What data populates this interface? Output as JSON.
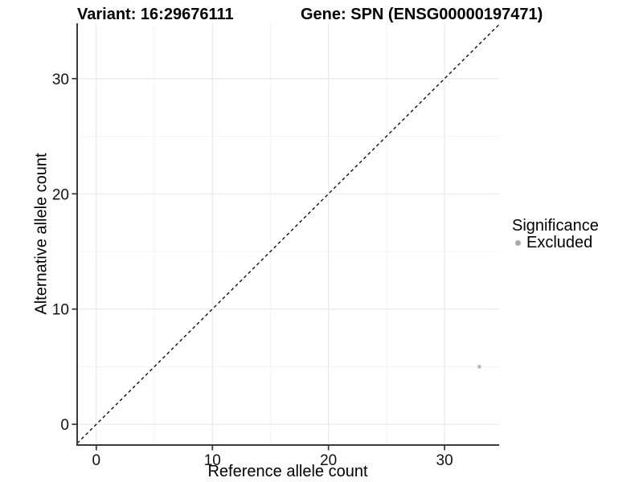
{
  "titles": {
    "variant": "Variant: 16:29676111",
    "gene": "Gene: SPN (ENSG00000197471)"
  },
  "chart_data": {
    "type": "scatter",
    "xlabel": "Reference allele count",
    "ylabel": "Alternative allele count",
    "xlim": [
      -1.65,
      34.7
    ],
    "ylim": [
      -1.8,
      34.8
    ],
    "x_major_ticks": [
      0,
      10,
      20,
      30
    ],
    "x_minor_gridlines": [
      5,
      15,
      25
    ],
    "y_major_ticks": [
      0,
      10,
      20,
      30
    ],
    "y_minor_gridlines": [
      5,
      15,
      25
    ],
    "grid": "major+minor, very light gray, white panel background",
    "reference_line": {
      "type": "identity",
      "style": "dashed",
      "color": "#000000"
    },
    "series": [
      {
        "name": "Excluded",
        "color": "#b9b9b9",
        "points": [
          {
            "x": 33,
            "y": 5
          }
        ]
      }
    ],
    "legend": {
      "title": "Significance",
      "position": "right-middle",
      "items": [
        {
          "label": "Excluded",
          "color": "#aaaaaa"
        }
      ]
    },
    "colors": {
      "axis_line": "#3a3a3a",
      "tick_mark": "#3a3a3a",
      "tick_label": "#111111",
      "grid_major": "#e9e9e9",
      "grid_minor": "#f4f4f4",
      "background": "#ffffff"
    }
  }
}
